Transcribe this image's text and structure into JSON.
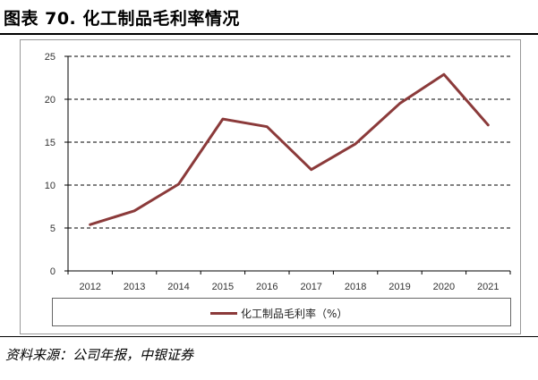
{
  "header": {
    "title": "图表 70. 化工制品毛利率情况"
  },
  "footer": {
    "source": "资料来源：公司年报，中银证券"
  },
  "chart_data": {
    "type": "line",
    "title": "",
    "xlabel": "",
    "ylabel": "",
    "x": [
      "2012",
      "2013",
      "2014",
      "2015",
      "2016",
      "2017",
      "2018",
      "2019",
      "2020",
      "2021"
    ],
    "ylim": [
      0,
      25
    ],
    "yticks": [
      0,
      5,
      10,
      15,
      20,
      25
    ],
    "grid": "horizontal-dashed",
    "legend_position": "bottom",
    "series": [
      {
        "name": "化工制品毛利率（%）",
        "color": "#8b3a3a",
        "values": [
          5.4,
          7.0,
          10.1,
          17.7,
          16.8,
          11.8,
          14.8,
          19.5,
          22.9,
          17.0
        ]
      }
    ]
  }
}
